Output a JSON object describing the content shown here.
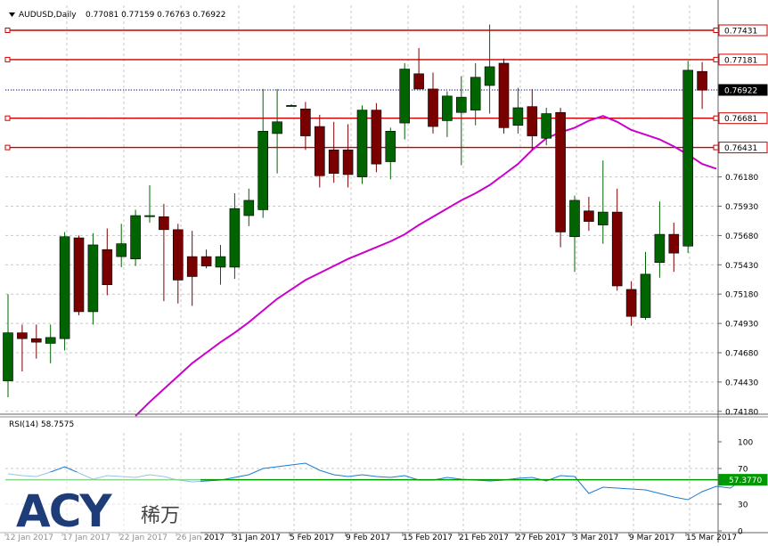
{
  "chart_data": {
    "type": "candlestick",
    "header": {
      "symbol_label": "AUDUSD,Daily",
      "ohlc_label": "0.77081 0.77159 0.76763 0.76922"
    },
    "price_axis": {
      "range": [
        0.7405,
        0.7755
      ],
      "ticks": [
        "0.76180",
        "0.75930",
        "0.75680",
        "0.75430",
        "0.75180",
        "0.74930",
        "0.74680",
        "0.74430",
        "0.74180"
      ]
    },
    "horizontal_levels": [
      {
        "price": 0.77431,
        "label": "0.77431",
        "color": "#cc0000",
        "style": "solid"
      },
      {
        "price": 0.77181,
        "label": "0.77181",
        "color": "#cc0000",
        "style": "solid"
      },
      {
        "price": 0.76922,
        "label": "0.76922",
        "color": "#000080",
        "style": "dotted",
        "current": true
      },
      {
        "price": 0.76681,
        "label": "0.76681",
        "color": "#cc0000",
        "style": "solid"
      },
      {
        "price": 0.76431,
        "label": "0.76431",
        "color": "#cc0000",
        "style": "solid"
      }
    ],
    "colors": {
      "bull": "#006400",
      "bear": "#7a0000",
      "ma": "#cc00cc",
      "grid": "#c8c8c8",
      "rsi": "#1e7bd0",
      "rsi_level": "#009900"
    },
    "candles": [
      {
        "o": 0.7444,
        "h": 0.7518,
        "l": 0.743,
        "c": 0.7485
      },
      {
        "o": 0.7485,
        "h": 0.7492,
        "l": 0.7452,
        "c": 0.748
      },
      {
        "o": 0.748,
        "h": 0.7492,
        "l": 0.7463,
        "c": 0.7477
      },
      {
        "o": 0.7476,
        "h": 0.7492,
        "l": 0.7459,
        "c": 0.7481
      },
      {
        "o": 0.748,
        "h": 0.7571,
        "l": 0.747,
        "c": 0.7567
      },
      {
        "o": 0.7566,
        "h": 0.7568,
        "l": 0.75,
        "c": 0.7503
      },
      {
        "o": 0.7503,
        "h": 0.757,
        "l": 0.7492,
        "c": 0.756
      },
      {
        "o": 0.7556,
        "h": 0.7574,
        "l": 0.7517,
        "c": 0.7526
      },
      {
        "o": 0.755,
        "h": 0.7578,
        "l": 0.7541,
        "c": 0.7561
      },
      {
        "o": 0.7548,
        "h": 0.759,
        "l": 0.7542,
        "c": 0.7585
      },
      {
        "o": 0.7585,
        "h": 0.7611,
        "l": 0.7579,
        "c": 0.7585
      },
      {
        "o": 0.7584,
        "h": 0.7595,
        "l": 0.7512,
        "c": 0.7573
      },
      {
        "o": 0.7573,
        "h": 0.7578,
        "l": 0.751,
        "c": 0.753
      },
      {
        "o": 0.755,
        "h": 0.7572,
        "l": 0.7508,
        "c": 0.7533
      },
      {
        "o": 0.755,
        "h": 0.7556,
        "l": 0.754,
        "c": 0.7542
      },
      {
        "o": 0.7541,
        "h": 0.756,
        "l": 0.7526,
        "c": 0.755
      },
      {
        "o": 0.7541,
        "h": 0.7604,
        "l": 0.7531,
        "c": 0.7591
      },
      {
        "o": 0.7585,
        "h": 0.7608,
        "l": 0.7576,
        "c": 0.7598
      },
      {
        "o": 0.759,
        "h": 0.7693,
        "l": 0.7583,
        "c": 0.7657
      },
      {
        "o": 0.7655,
        "h": 0.7693,
        "l": 0.7621,
        "c": 0.7665
      },
      {
        "o": 0.7679,
        "h": 0.768,
        "l": 0.7679,
        "c": 0.7679
      },
      {
        "o": 0.7676,
        "h": 0.7682,
        "l": 0.7641,
        "c": 0.7653
      },
      {
        "o": 0.7661,
        "h": 0.7671,
        "l": 0.7609,
        "c": 0.7619
      },
      {
        "o": 0.7641,
        "h": 0.7665,
        "l": 0.7613,
        "c": 0.7621
      },
      {
        "o": 0.7641,
        "h": 0.7663,
        "l": 0.7609,
        "c": 0.762
      },
      {
        "o": 0.7618,
        "h": 0.7679,
        "l": 0.7612,
        "c": 0.7675
      },
      {
        "o": 0.7675,
        "h": 0.7681,
        "l": 0.7622,
        "c": 0.7629
      },
      {
        "o": 0.7631,
        "h": 0.766,
        "l": 0.7616,
        "c": 0.7657
      },
      {
        "o": 0.7664,
        "h": 0.7715,
        "l": 0.765,
        "c": 0.771
      },
      {
        "o": 0.7706,
        "h": 0.7728,
        "l": 0.7693,
        "c": 0.7693
      },
      {
        "o": 0.7693,
        "h": 0.7707,
        "l": 0.7655,
        "c": 0.7661
      },
      {
        "o": 0.7666,
        "h": 0.7691,
        "l": 0.7652,
        "c": 0.7687
      },
      {
        "o": 0.7673,
        "h": 0.7704,
        "l": 0.7628,
        "c": 0.7686
      },
      {
        "o": 0.7675,
        "h": 0.7715,
        "l": 0.7662,
        "c": 0.7703
      },
      {
        "o": 0.7696,
        "h": 0.7748,
        "l": 0.7672,
        "c": 0.7712
      },
      {
        "o": 0.7715,
        "h": 0.7719,
        "l": 0.7655,
        "c": 0.766
      },
      {
        "o": 0.7662,
        "h": 0.7694,
        "l": 0.7655,
        "c": 0.7677
      },
      {
        "o": 0.7678,
        "h": 0.7693,
        "l": 0.7641,
        "c": 0.7653
      },
      {
        "o": 0.7651,
        "h": 0.7677,
        "l": 0.7645,
        "c": 0.7672
      },
      {
        "o": 0.7673,
        "h": 0.7677,
        "l": 0.7558,
        "c": 0.7571
      },
      {
        "o": 0.7567,
        "h": 0.7602,
        "l": 0.7537,
        "c": 0.7598
      },
      {
        "o": 0.7589,
        "h": 0.7601,
        "l": 0.7572,
        "c": 0.758
      },
      {
        "o": 0.7577,
        "h": 0.7632,
        "l": 0.7561,
        "c": 0.7588
      },
      {
        "o": 0.7588,
        "h": 0.7608,
        "l": 0.7521,
        "c": 0.7525
      },
      {
        "o": 0.7522,
        "h": 0.7529,
        "l": 0.7491,
        "c": 0.7499
      },
      {
        "o": 0.7498,
        "h": 0.7554,
        "l": 0.7496,
        "c": 0.7535
      },
      {
        "o": 0.7545,
        "h": 0.7597,
        "l": 0.7532,
        "c": 0.7569
      },
      {
        "o": 0.7569,
        "h": 0.7579,
        "l": 0.7537,
        "c": 0.7553
      },
      {
        "o": 0.7559,
        "h": 0.7717,
        "l": 0.7553,
        "c": 0.7709
      },
      {
        "o": 0.7708,
        "h": 0.7716,
        "l": 0.7676,
        "c": 0.7692
      }
    ],
    "moving_average": {
      "start_index": 9,
      "values": [
        0.7414,
        0.7426,
        0.7437,
        0.7448,
        0.7459,
        0.7468,
        0.7477,
        0.7485,
        0.7494,
        0.7504,
        0.7514,
        0.7522,
        0.753,
        0.7536,
        0.7542,
        0.7548,
        0.7553,
        0.7558,
        0.7563,
        0.7569,
        0.7577,
        0.7584,
        0.7591,
        0.7598,
        0.7604,
        0.7611,
        0.762,
        0.7629,
        0.7641,
        0.7651,
        0.7656,
        0.766,
        0.7666,
        0.767,
        0.7665,
        0.7658,
        0.7654,
        0.765,
        0.7644,
        0.7637,
        0.7629,
        0.7625
      ]
    },
    "rsi": {
      "label": "RSI(14) 58.7575",
      "axis_ticks": [
        "100",
        "70",
        "30",
        "0"
      ],
      "level_label": "57.3770",
      "level": 57.377,
      "values": [
        64,
        62,
        61,
        66,
        72,
        65,
        58,
        62,
        61,
        60,
        63,
        61,
        57,
        55,
        56,
        57,
        60,
        63,
        70,
        72,
        74,
        76,
        68,
        63,
        61,
        63,
        61,
        60,
        62,
        57,
        57,
        60,
        58,
        57,
        56,
        57,
        59,
        60,
        56,
        62,
        61,
        42,
        49,
        48,
        47,
        46,
        42,
        38,
        35,
        44,
        50,
        48,
        60,
        58.7575
      ]
    },
    "x_axis_labels": [
      "12 Jan 2017",
      "17 Jan 2017",
      "22 Jan 2017",
      "26 Jan 2017",
      "31 Jan 2017",
      "5 Feb 2017",
      "9 Feb 2017",
      "15 Feb 2017",
      "21 Feb 2017",
      "27 Feb 2017",
      "3 Mar 2017",
      "9 Mar 2017",
      "15 Mar 2017"
    ],
    "watermark": {
      "text_latin": "ACY",
      "text_cjk": "稀万"
    }
  }
}
